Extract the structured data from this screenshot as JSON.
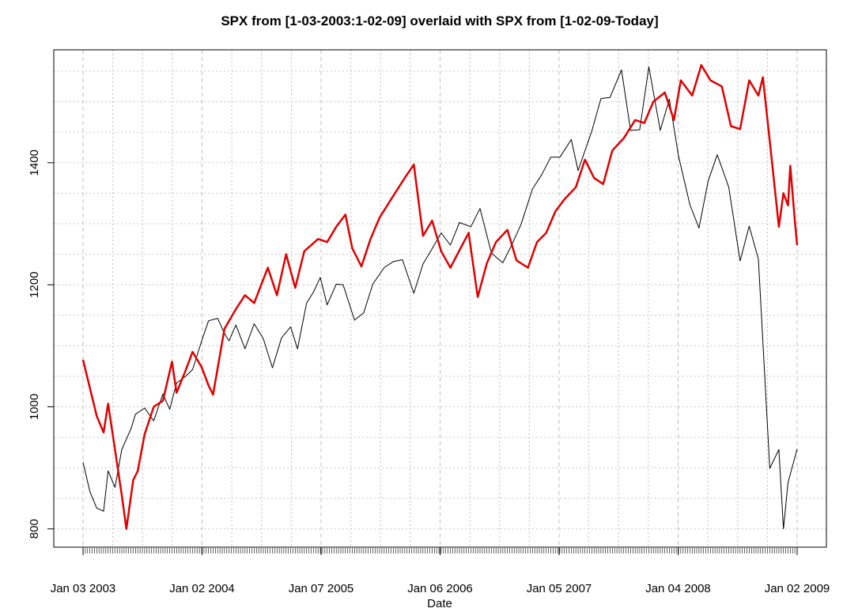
{
  "chart_data": {
    "type": "line",
    "title": "SPX from [1-03-2003:1-02-09] overlaid with SPX from [1-02-09-Today]",
    "xlabel": "Date",
    "ylabel": "",
    "x_ticks": [
      "Jan 03 2003",
      "Jan 02 2004",
      "Jan 07 2005",
      "Jan 06 2006",
      "Jan 05 2007",
      "Jan 04 2008",
      "Jan 02 2009"
    ],
    "xlim": [
      "2003-01-03",
      "2009-01-02"
    ],
    "y_ticks": [
      800,
      1000,
      1200,
      1400
    ],
    "ylim": [
      770,
      1585
    ],
    "grid": true,
    "series": [
      {
        "color": "#000000",
        "line_width": 1,
        "points": [
          [
            "2003-01-03",
            909
          ],
          [
            "2003-01-24",
            861
          ],
          [
            "2003-02-14",
            834
          ],
          [
            "2003-03-07",
            829
          ],
          [
            "2003-03-21",
            895
          ],
          [
            "2003-04-11",
            868
          ],
          [
            "2003-05-02",
            930
          ],
          [
            "2003-05-30",
            964
          ],
          [
            "2003-06-13",
            988
          ],
          [
            "2003-07-11",
            998
          ],
          [
            "2003-08-08",
            977
          ],
          [
            "2003-09-05",
            1021
          ],
          [
            "2003-09-26",
            996
          ],
          [
            "2003-10-17",
            1039
          ],
          [
            "2003-11-14",
            1050
          ],
          [
            "2003-12-05",
            1061
          ],
          [
            "2004-01-02",
            1108
          ],
          [
            "2004-01-23",
            1141
          ],
          [
            "2004-02-20",
            1145
          ],
          [
            "2004-03-12",
            1120
          ],
          [
            "2004-03-26",
            1108
          ],
          [
            "2004-04-16",
            1134
          ],
          [
            "2004-05-14",
            1095
          ],
          [
            "2004-06-11",
            1136
          ],
          [
            "2004-07-09",
            1112
          ],
          [
            "2004-08-06",
            1064
          ],
          [
            "2004-09-03",
            1113
          ],
          [
            "2004-10-01",
            1131
          ],
          [
            "2004-10-22",
            1095
          ],
          [
            "2004-11-19",
            1170
          ],
          [
            "2004-12-10",
            1188
          ],
          [
            "2004-12-31",
            1212
          ],
          [
            "2005-01-21",
            1167
          ],
          [
            "2005-02-18",
            1201
          ],
          [
            "2005-03-11",
            1200
          ],
          [
            "2005-04-15",
            1142
          ],
          [
            "2005-05-13",
            1154
          ],
          [
            "2005-06-10",
            1201
          ],
          [
            "2005-07-15",
            1228
          ],
          [
            "2005-08-12",
            1238
          ],
          [
            "2005-09-09",
            1241
          ],
          [
            "2005-10-14",
            1186
          ],
          [
            "2005-11-11",
            1234
          ],
          [
            "2005-12-09",
            1259
          ],
          [
            "2006-01-06",
            1285
          ],
          [
            "2006-02-03",
            1265
          ],
          [
            "2006-03-03",
            1302
          ],
          [
            "2006-04-07",
            1295
          ],
          [
            "2006-05-05",
            1325
          ],
          [
            "2006-06-09",
            1252
          ],
          [
            "2006-07-14",
            1236
          ],
          [
            "2006-08-11",
            1266
          ],
          [
            "2006-09-08",
            1299
          ],
          [
            "2006-10-13",
            1357
          ],
          [
            "2006-11-10",
            1380
          ],
          [
            "2006-12-08",
            1409
          ],
          [
            "2007-01-05",
            1409
          ],
          [
            "2007-02-09",
            1438
          ],
          [
            "2007-03-02",
            1387
          ],
          [
            "2007-04-13",
            1452
          ],
          [
            "2007-05-11",
            1505
          ],
          [
            "2007-06-08",
            1507
          ],
          [
            "2007-07-13",
            1552
          ],
          [
            "2007-08-10",
            1453
          ],
          [
            "2007-09-07",
            1454
          ],
          [
            "2007-10-05",
            1557
          ],
          [
            "2007-11-09",
            1453
          ],
          [
            "2007-12-07",
            1504
          ],
          [
            "2008-01-04",
            1411
          ],
          [
            "2008-02-08",
            1331
          ],
          [
            "2008-03-07",
            1293
          ],
          [
            "2008-04-04",
            1370
          ],
          [
            "2008-05-02",
            1413
          ],
          [
            "2008-06-06",
            1360
          ],
          [
            "2008-07-11",
            1239
          ],
          [
            "2008-08-08",
            1296
          ],
          [
            "2008-09-05",
            1242
          ],
          [
            "2008-10-10",
            899
          ],
          [
            "2008-11-07",
            930
          ],
          [
            "2008-11-21",
            800
          ],
          [
            "2008-12-05",
            876
          ],
          [
            "2009-01-02",
            931
          ]
        ]
      },
      {
        "color": "#e00000",
        "line_width": 2.5,
        "points": [
          [
            "2003-01-03",
            1077
          ],
          [
            "2003-02-14",
            985
          ],
          [
            "2003-03-07",
            958
          ],
          [
            "2003-03-21",
            1005
          ],
          [
            "2003-04-11",
            930
          ],
          [
            "2003-05-02",
            855
          ],
          [
            "2003-05-16",
            800
          ],
          [
            "2003-06-06",
            880
          ],
          [
            "2003-06-20",
            895
          ],
          [
            "2003-07-11",
            955
          ],
          [
            "2003-08-08",
            1000
          ],
          [
            "2003-09-05",
            1010
          ],
          [
            "2003-10-03",
            1074
          ],
          [
            "2003-10-17",
            1023
          ],
          [
            "2003-11-14",
            1060
          ],
          [
            "2003-12-05",
            1090
          ],
          [
            "2004-01-02",
            1065
          ],
          [
            "2004-01-23",
            1035
          ],
          [
            "2004-02-06",
            1020
          ],
          [
            "2004-03-12",
            1128
          ],
          [
            "2004-04-16",
            1160
          ],
          [
            "2004-05-14",
            1183
          ],
          [
            "2004-06-11",
            1170
          ],
          [
            "2004-07-23",
            1228
          ],
          [
            "2004-08-20",
            1183
          ],
          [
            "2004-09-17",
            1250
          ],
          [
            "2004-10-15",
            1195
          ],
          [
            "2004-11-12",
            1255
          ],
          [
            "2004-12-24",
            1275
          ],
          [
            "2005-01-21",
            1270
          ],
          [
            "2005-02-18",
            1295
          ],
          [
            "2005-03-18",
            1315
          ],
          [
            "2005-04-08",
            1260
          ],
          [
            "2005-05-06",
            1230
          ],
          [
            "2005-06-03",
            1275
          ],
          [
            "2005-07-01",
            1310
          ],
          [
            "2005-08-05",
            1340
          ],
          [
            "2005-09-16",
            1375
          ],
          [
            "2005-10-14",
            1397
          ],
          [
            "2005-11-11",
            1280
          ],
          [
            "2005-12-09",
            1305
          ],
          [
            "2006-01-06",
            1255
          ],
          [
            "2006-02-03",
            1228
          ],
          [
            "2006-03-31",
            1285
          ],
          [
            "2006-04-28",
            1180
          ],
          [
            "2006-05-26",
            1235
          ],
          [
            "2006-06-23",
            1270
          ],
          [
            "2006-07-28",
            1290
          ],
          [
            "2006-08-25",
            1240
          ],
          [
            "2006-09-29",
            1228
          ],
          [
            "2006-10-27",
            1270
          ],
          [
            "2006-11-24",
            1285
          ],
          [
            "2006-12-22",
            1320
          ],
          [
            "2007-01-19",
            1340
          ],
          [
            "2007-02-23",
            1360
          ],
          [
            "2007-03-23",
            1405
          ],
          [
            "2007-04-20",
            1375
          ],
          [
            "2007-05-18",
            1365
          ],
          [
            "2007-06-15",
            1420
          ],
          [
            "2007-07-20",
            1440
          ],
          [
            "2007-08-24",
            1470
          ],
          [
            "2007-09-21",
            1465
          ],
          [
            "2007-10-19",
            1500
          ],
          [
            "2007-11-23",
            1515
          ],
          [
            "2007-12-21",
            1470
          ],
          [
            "2008-01-11",
            1535
          ],
          [
            "2008-02-15",
            1510
          ],
          [
            "2008-03-14",
            1560
          ],
          [
            "2008-04-11",
            1535
          ],
          [
            "2008-05-16",
            1525
          ],
          [
            "2008-06-13",
            1460
          ],
          [
            "2008-07-11",
            1455
          ],
          [
            "2008-08-08",
            1535
          ],
          [
            "2008-09-05",
            1510
          ],
          [
            "2008-09-19",
            1540
          ],
          [
            "2008-10-17",
            1400
          ],
          [
            "2008-11-07",
            1295
          ],
          [
            "2008-11-21",
            1350
          ],
          [
            "2008-12-05",
            1330
          ],
          [
            "2008-12-12",
            1395
          ],
          [
            "2008-12-26",
            1305
          ],
          [
            "2009-01-02",
            1265
          ]
        ]
      }
    ]
  }
}
